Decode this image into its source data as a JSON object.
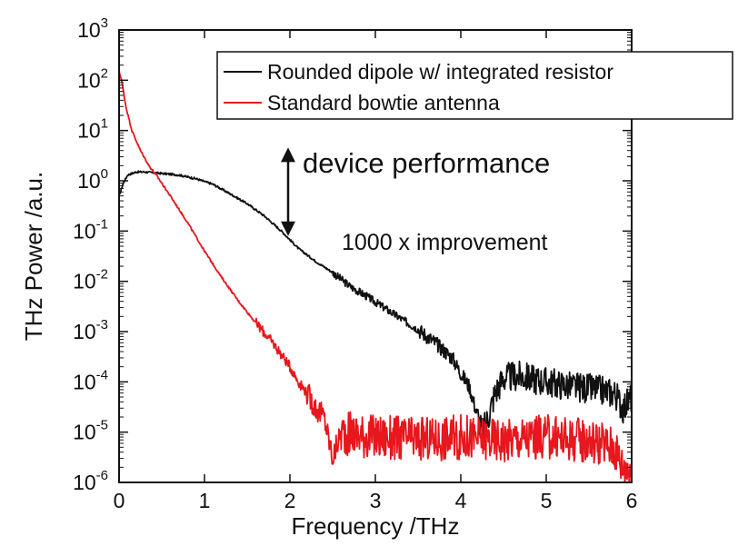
{
  "chart_data": {
    "type": "line",
    "title": "",
    "xlabel": "Frequency /THz",
    "ylabel": "THz Power /a.u.",
    "xlim": [
      0,
      6
    ],
    "ylim": [
      1e-06,
      1000
    ],
    "yscale": "log",
    "grid": false,
    "legend_position": "top-right",
    "x_ticks": [
      {
        "value": 0,
        "label": "0"
      },
      {
        "value": 1,
        "label": "1"
      },
      {
        "value": 2,
        "label": "2"
      },
      {
        "value": 3,
        "label": "3"
      },
      {
        "value": 4,
        "label": "4"
      },
      {
        "value": 5,
        "label": "5"
      },
      {
        "value": 6,
        "label": "6"
      }
    ],
    "y_ticks": [
      {
        "value": 1e-06,
        "base": "10",
        "exp": "-6"
      },
      {
        "value": 1e-05,
        "base": "10",
        "exp": "-5"
      },
      {
        "value": 0.0001,
        "base": "10",
        "exp": "-4"
      },
      {
        "value": 0.001,
        "base": "10",
        "exp": "-3"
      },
      {
        "value": 0.01,
        "base": "10",
        "exp": "-2"
      },
      {
        "value": 0.1,
        "base": "10",
        "exp": "-1"
      },
      {
        "value": 1,
        "base": "10",
        "exp": "0"
      },
      {
        "value": 10,
        "base": "10",
        "exp": "1"
      },
      {
        "value": 100,
        "base": "10",
        "exp": "2"
      },
      {
        "value": 1000,
        "base": "10",
        "exp": "3"
      }
    ],
    "series": [
      {
        "name": "Rounded dipole w/ integrated resistor",
        "color": "#111111",
        "noise": [
          {
            "from": 2.5,
            "amplitude": 0.08
          },
          {
            "from": 3.5,
            "amplitude": 0.15
          },
          {
            "from": 4.2,
            "amplitude": 0.3
          }
        ],
        "points": [
          [
            0.0,
            0.5
          ],
          [
            0.05,
            0.9
          ],
          [
            0.1,
            1.3
          ],
          [
            0.2,
            1.5
          ],
          [
            0.3,
            1.5
          ],
          [
            0.5,
            1.4
          ],
          [
            0.7,
            1.3
          ],
          [
            0.9,
            1.1
          ],
          [
            1.1,
            0.85
          ],
          [
            1.3,
            0.55
          ],
          [
            1.5,
            0.35
          ],
          [
            1.7,
            0.2
          ],
          [
            1.9,
            0.1
          ],
          [
            2.1,
            0.045
          ],
          [
            2.3,
            0.025
          ],
          [
            2.5,
            0.015
          ],
          [
            2.7,
            0.008
          ],
          [
            2.9,
            0.005
          ],
          [
            3.1,
            0.003
          ],
          [
            3.3,
            0.0018
          ],
          [
            3.5,
            0.0011
          ],
          [
            3.7,
            0.0006
          ],
          [
            3.9,
            0.0003
          ],
          [
            4.0,
            0.00015
          ],
          [
            4.1,
            8e-05
          ],
          [
            4.15,
            4e-05
          ],
          [
            4.2,
            2e-05
          ],
          [
            4.25,
            1e-05
          ],
          [
            4.3,
            1.5e-05
          ],
          [
            4.4,
            6e-05
          ],
          [
            4.5,
            0.00012
          ],
          [
            4.7,
            0.00013
          ],
          [
            5.0,
            0.0001
          ],
          [
            5.3,
            8e-05
          ],
          [
            5.6,
            7e-05
          ],
          [
            5.8,
            6e-05
          ],
          [
            5.9,
            3e-05
          ],
          [
            6.0,
            5e-05
          ]
        ]
      },
      {
        "name": "Standard bowtie antenna",
        "color": "#e8161d",
        "noise": [
          {
            "from": 1.6,
            "amplitude": 0.1
          },
          {
            "from": 2.2,
            "amplitude": 0.25
          },
          {
            "from": 2.6,
            "amplitude": 0.45
          }
        ],
        "points": [
          [
            0.0,
            150
          ],
          [
            0.03,
            100
          ],
          [
            0.08,
            30
          ],
          [
            0.15,
            10
          ],
          [
            0.25,
            4
          ],
          [
            0.35,
            2
          ],
          [
            0.45,
            1.2
          ],
          [
            0.6,
            0.5
          ],
          [
            0.8,
            0.15
          ],
          [
            1.0,
            0.04
          ],
          [
            1.2,
            0.012
          ],
          [
            1.4,
            0.004
          ],
          [
            1.6,
            0.0015
          ],
          [
            1.8,
            0.0006
          ],
          [
            2.0,
            0.0002
          ],
          [
            2.1,
            0.0001
          ],
          [
            2.2,
            6e-05
          ],
          [
            2.3,
            3e-05
          ],
          [
            2.4,
            2e-05
          ],
          [
            2.5,
            3e-06
          ],
          [
            2.6,
            1e-05
          ],
          [
            3.0,
            8e-06
          ],
          [
            3.5,
            7e-06
          ],
          [
            4.0,
            8e-06
          ],
          [
            4.5,
            7e-06
          ],
          [
            5.0,
            8e-06
          ],
          [
            5.5,
            7e-06
          ],
          [
            5.8,
            5e-06
          ],
          [
            5.9,
            2e-06
          ],
          [
            6.0,
            2e-06
          ]
        ]
      }
    ],
    "annotations": [
      {
        "text": "device performance",
        "style": "large"
      },
      {
        "text": "1000 x improvement",
        "style": "small"
      }
    ],
    "arrow": {
      "x": 2.0,
      "y_from": 5,
      "y_to": 0.08
    }
  }
}
